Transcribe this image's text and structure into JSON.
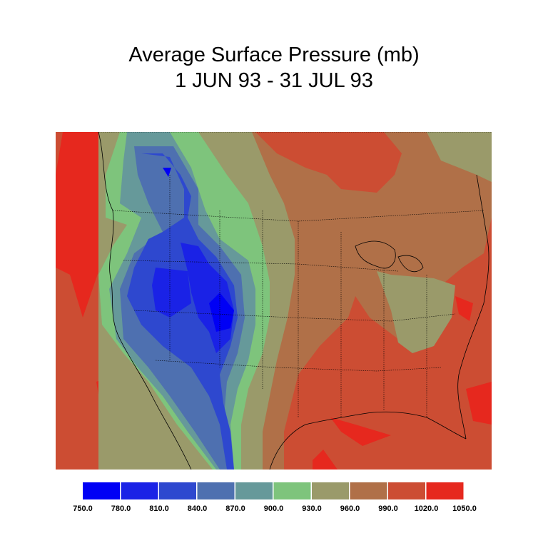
{
  "title": {
    "line1": "Average Surface Pressure (mb)",
    "line2": "1 JUN 93 - 31 JUL 93"
  },
  "colorbar": {
    "levels": [
      "750.0",
      "780.0",
      "810.0",
      "840.0",
      "870.0",
      "900.0",
      "930.0",
      "960.0",
      "990.0",
      "1020.0",
      "1050.0"
    ],
    "colors": [
      "#0000f5",
      "#1a22e6",
      "#2e48cf",
      "#4e70b0",
      "#66999a",
      "#7ec47c",
      "#9a9a6a",
      "#b07048",
      "#cc4d33",
      "#e6281e"
    ]
  }
}
